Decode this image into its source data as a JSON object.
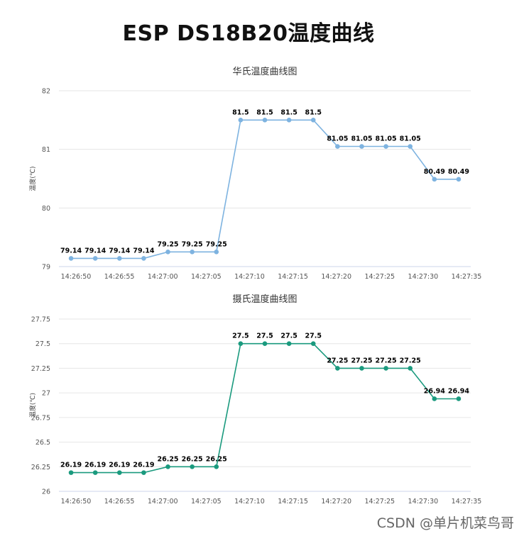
{
  "page_title": "ESP DS18B20温度曲线",
  "watermark": "CSDN @单片机菜鸟哥",
  "chart_data": [
    {
      "type": "line",
      "title": "华氏温度曲线图",
      "ylabel": "温度(℃)",
      "xlabel": "",
      "color": "#7eb3e0",
      "ylim": [
        79,
        82
      ],
      "yticks": [
        79,
        80,
        81,
        82
      ],
      "ytick_labels": [
        "79",
        "80",
        "81",
        "82"
      ],
      "xtick_labels": [
        "14:26:50",
        "14:26:55",
        "14:27:00",
        "14:27:05",
        "14:27:10",
        "14:27:15",
        "14:27:20",
        "14:27:25",
        "14:27:30",
        "14:27:35"
      ],
      "values": [
        79.14,
        79.14,
        79.14,
        79.14,
        79.25,
        79.25,
        79.25,
        81.5,
        81.5,
        81.5,
        81.5,
        81.05,
        81.05,
        81.05,
        81.05,
        80.49,
        80.49
      ],
      "labels": [
        "79.14",
        "79.14",
        "79.14",
        "79.14",
        "79.25",
        "79.25",
        "79.25",
        "81.5",
        "81.5",
        "81.5",
        "81.5",
        "81.05",
        "81.05",
        "81.05",
        "81.05",
        "80.49",
        "80.49"
      ],
      "grid": true,
      "legend": "none"
    },
    {
      "type": "line",
      "title": "摄氏温度曲线图",
      "ylabel": "温度(℃)",
      "xlabel": "",
      "color": "#1a9a7e",
      "ylim": [
        26,
        27.75
      ],
      "yticks": [
        26,
        26.25,
        26.5,
        26.75,
        27,
        27.25,
        27.5,
        27.75
      ],
      "ytick_labels": [
        "26",
        "26.25",
        "26.5",
        "26.75",
        "27",
        "27.25",
        "27.5",
        "27.75"
      ],
      "xtick_labels": [
        "14:26:50",
        "14:26:55",
        "14:27:00",
        "14:27:05",
        "14:27:10",
        "14:27:15",
        "14:27:20",
        "14:27:25",
        "14:27:30",
        "14:27:35"
      ],
      "values": [
        26.19,
        26.19,
        26.19,
        26.19,
        26.25,
        26.25,
        26.25,
        27.5,
        27.5,
        27.5,
        27.5,
        27.25,
        27.25,
        27.25,
        27.25,
        26.94,
        26.94
      ],
      "labels": [
        "26.19",
        "26.19",
        "26.19",
        "26.19",
        "26.25",
        "26.25",
        "26.25",
        "27.5",
        "27.5",
        "27.5",
        "27.5",
        "27.25",
        "27.25",
        "27.25",
        "27.25",
        "26.94",
        "26.94"
      ],
      "grid": true,
      "legend": "none"
    }
  ]
}
